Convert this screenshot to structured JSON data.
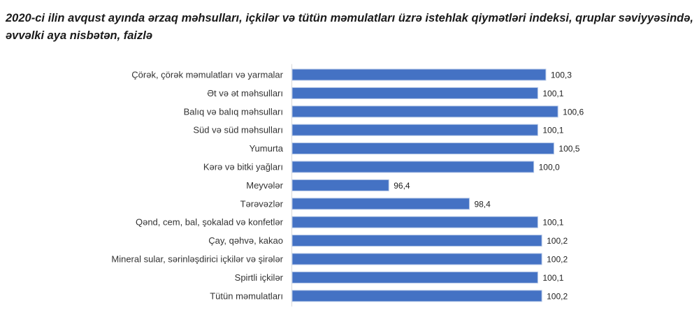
{
  "chart_data": {
    "type": "bar",
    "orientation": "horizontal",
    "title": "2020-ci ilin avqust ayında ərzaq məhsulları, içkilər və tütün məmulatları üzrə istehlak qiymətləri indeksi, qruplar səviyyəsində, əvvəlki aya nisbətən, faizlə",
    "categories": [
      "Çörək, çörək məmulatları  və yarmalar",
      "Ət və ət məhsulları",
      "Balıq və balıq məhsulları",
      "Süd və süd məhsulları",
      "Yumurta",
      "Kərə və bitki yağları",
      "Meyvələr",
      "Tərəvəzlər",
      "Qənd, cem, bal, şokalad və konfetlər",
      "Çay, qəhvə, kakao",
      "Mineral sular, sərinləşdirici içkilər və şirələr",
      "Spirtli içkilər",
      "Tütün məmulatları"
    ],
    "values": [
      100.3,
      100.1,
      100.6,
      100.1,
      100.5,
      100.0,
      96.4,
      98.4,
      100.1,
      100.2,
      100.2,
      100.1,
      100.2
    ],
    "data_labels": [
      "100,3",
      "100,1",
      "100,6",
      "100,1",
      "100,5",
      "100,0",
      "96,4",
      "98,4",
      "100,1",
      "100,2",
      "100,2",
      "100,1",
      "100,2"
    ],
    "xlim": [
      94,
      102
    ],
    "grid": false,
    "bar_color": "#4472C4"
  }
}
